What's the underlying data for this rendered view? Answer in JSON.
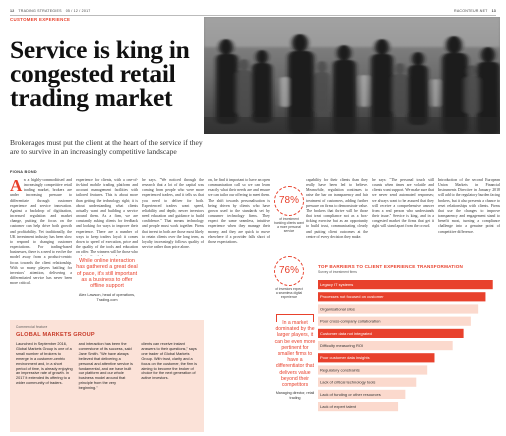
{
  "header": {
    "page_number": "12",
    "publication": "TRADING STRATEGIES",
    "date": "05 / 12 / 2017",
    "site": "RACONTEUR.NET",
    "page_number_right": "13"
  },
  "section_label": "CUSTOMER EXPERIENCE",
  "headline": "Service is king in congested retail trading market",
  "standfirst": "Brokerages must put the client at the heart of the service if they are to survive in an increasingly competitive landscape",
  "byline": "FIONA BOND",
  "article": {
    "col1": "n a highly-commoditised and increasingly competitive retail trading market, brokers are under increasing pressure to differentiate through customer experience and service innovation. Against a backdrop of digitisation, increased regulation and market change, putting the focus on the customer can help drive both growth and profitability. Yet traditionally, the UK investment industry has been slow to respond to changing customer expectations. For trading-based businesses, there is a need to evolve the model away from a product-centric focus towards the client relationship. With so many players battling for investors' attention, delivering a differentiated service has never been more critical.",
    "col2": "experience for clients, with a one-of-its-kind mobile trading platform and account management facilities with tailored features. This is about more than getting the technology right; it is about understanding what clients actually want and building a service around them. As a firm, we are constantly asking clients for feedback and looking for ways to improve their experience. There are a number of ways to keep traders loyal: it comes down to speed of execution, price and the quality of the tools and education on offer. The winners will be those who make trading feel personal.",
    "col3": "he says. \"We noticed through the research that a lot of the capital was coming from people who were more experienced traders, and it tells us that you need to deliver for both. Experienced traders want speed, reliability and depth; newer investors need education and guidance to build confidence.\" That means technology and people must work together. Firms that invest in both are those most likely to retain clients over the long term, as loyalty increasingly follows quality of service rather than price alone.",
    "col4": "on, he find it important to have an open communication call so we can learn exactly what their needs are and ensure we can tailor our offering to meet them. The shift towards personalisation is being driven by clients who have grown used to the standards set by consumer technology firms. They expect the same seamless, intuitive experience when they manage their money, and they are quick to move elsewhere if a provider falls short of those expectations.",
    "col5": "capability for their clients than they really have been led to believe. Meanwhile, regulation continues to raise the bar on transparency and fair treatment of customers, adding further pressure on firms to demonstrate value. The brokers that thrive will be those that treat compliance not as a box-ticking exercise but as an opportunity to build trust, communicating clearly and putting client outcomes at the centre of every decision they make.",
    "col6": "he says: \"The personal touch still counts when times are volatile and clients want support. We make sure that we never send automated responses; we always want to be assured that they will receive a comprehensive answer from a real person who understands their issue.\" Service is king, and in a congested market the firms that get it right will stand apart from the crowd.",
    "col7": "Introduction of the second European Union Markets in Financial Instruments Directive in January 2018 will add to the regulatory burden facing brokers, but it also presents a chance to reset relationships with clients. Firms that use the changes to improve transparency and engagement stand to benefit most, turning a compliance challenge into a genuine point of competitive difference."
  },
  "pull_quote": {
    "text": "While online interaction has gathered a great deal of pace, it's still important as a business to offer offline support",
    "attribution": "Alex Lawson, head of operations, Trading.com"
  },
  "stats": [
    {
      "value": "78%",
      "caption": "of investment banking clients want a more personal service"
    },
    {
      "value": "76%",
      "caption": "of investors expect a seamless digital experience"
    }
  ],
  "sidebar_quote": {
    "text": "In a market dominated by the larger players, it can be even more pertinent for smaller firms to have a differentiator that delivers value beyond their competitors",
    "source": "Managing director, retail trading"
  },
  "sponsor": {
    "tag": "Commercial feature",
    "title": "GLOBAL MARKETS GROUP",
    "col1": "Launched in September 2016, Global Markets Group is one of a small number of brokers to emerge in a customer-centric environment and, in a short period of time, is already enjoying an impressive rate of growth. In 2017 it extended its offering to a wider community of traders.",
    "col2": "and interaction has been the cornerstone of its success, said Jane Smith. \"We have always believed that delivering a personal and attentive service is fundamental, and we have built our platform and our whole business model around that principle from the very beginning.\"",
    "col3": "clients can receive instant answers to their questions,\" says one trader of Global Markets Group. With trust, clarity and a focus on the customer, the firm is aiming to become the broker of choice for the next generation of active investors."
  },
  "chart_data": {
    "type": "bar",
    "title": "TOP BARRIERS TO CLIENT EXPERIENCE TRANSFORMATION",
    "subtitle": "Survey of investment firms",
    "source": "",
    "categories": [
      "Legacy IT systems",
      "Processes not focused on customer",
      "Organisational silos",
      "Poor cross-company collaboration",
      "Customer data not integrated",
      "Difficulty measuring ROI",
      "Poor customer data insights",
      "Regulatory constraints",
      "Lack of critical technology tools",
      "Lack of funding or other resources",
      "Lack of expert talent"
    ],
    "values": [
      48,
      46,
      44,
      42,
      40,
      37,
      32,
      30,
      27,
      24,
      22
    ],
    "highlight": [
      true,
      true,
      false,
      false,
      true,
      false,
      true,
      false,
      false,
      false,
      false
    ],
    "xlim": [
      0,
      50
    ],
    "unit": "%"
  },
  "colors": {
    "accent": "#e8412c",
    "highlight": "#e8412c",
    "bar": "#fbd9cd"
  }
}
